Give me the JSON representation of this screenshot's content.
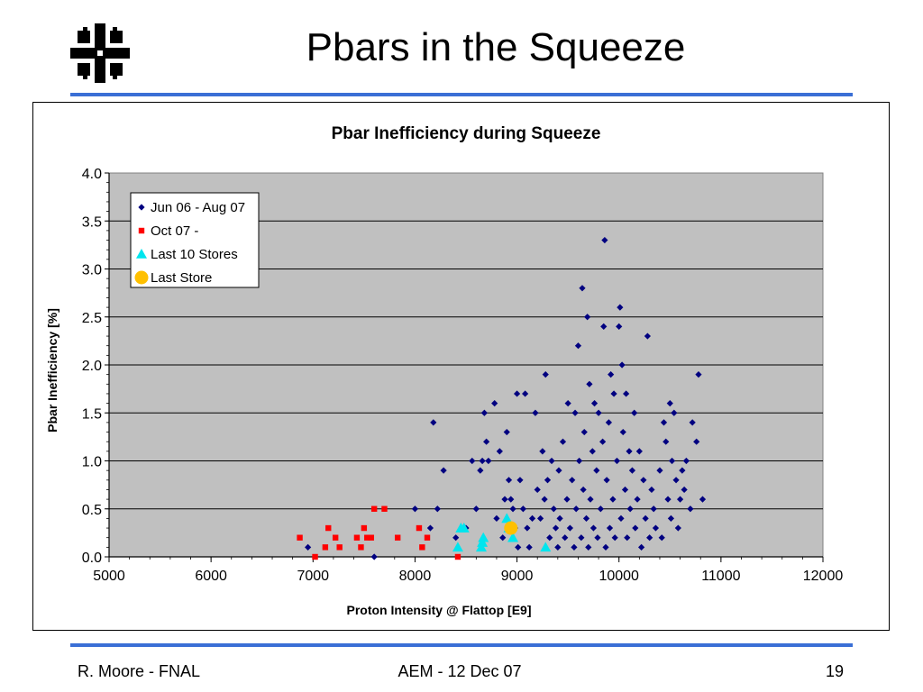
{
  "slide": {
    "title": "Pbars in the Squeeze",
    "footer_left": "R. Moore - FNAL",
    "footer_center": "AEM - 12 Dec 07",
    "footer_right": "19"
  },
  "colors": {
    "accent_rule": "#3a6fd6",
    "plot_background": "#c0c0c0",
    "series_jun": "#000080",
    "series_oct": "#ff0000",
    "series_last10": "#00e5ee",
    "series_last_store": "#ffc000"
  },
  "logo": {
    "icon": "fermilab-logo-icon",
    "color": "#000000"
  },
  "chart_data": {
    "type": "scatter",
    "title": "Pbar Inefficiency during Squeeze",
    "xlabel": "Proton Intensity @ Flattop  [E9]",
    "ylabel": "Pbar Inefficiency  [%]",
    "xlim": [
      5000,
      12000
    ],
    "ylim": [
      0,
      4
    ],
    "xticks": [
      "5000",
      "6000",
      "7000",
      "8000",
      "9000",
      "10000",
      "11000",
      "12000"
    ],
    "yticks": [
      "0.0",
      "0.5",
      "1.0",
      "1.5",
      "2.0",
      "2.5",
      "3.0",
      "3.5",
      "4.0"
    ],
    "grid": "horizontal",
    "legend_position": "top-left",
    "series": [
      {
        "name": "Jun 06 - Aug 07",
        "marker": "diamond",
        "color": "#000080",
        "points": [
          [
            6950,
            0.1
          ],
          [
            7600,
            0.0
          ],
          [
            8000,
            0.5
          ],
          [
            8150,
            0.3
          ],
          [
            8180,
            1.4
          ],
          [
            8220,
            0.5
          ],
          [
            8280,
            0.9
          ],
          [
            8400,
            0.2
          ],
          [
            8500,
            0.3
          ],
          [
            8560,
            1.0
          ],
          [
            8600,
            0.5
          ],
          [
            8640,
            0.9
          ],
          [
            8660,
            1.0
          ],
          [
            8680,
            1.5
          ],
          [
            8700,
            1.2
          ],
          [
            8720,
            1.0
          ],
          [
            8780,
            1.6
          ],
          [
            8800,
            0.4
          ],
          [
            8830,
            1.1
          ],
          [
            8860,
            0.2
          ],
          [
            8880,
            0.6
          ],
          [
            8900,
            1.3
          ],
          [
            8920,
            0.8
          ],
          [
            8940,
            0.6
          ],
          [
            8960,
            0.5
          ],
          [
            8980,
            0.3
          ],
          [
            9000,
            1.7
          ],
          [
            9010,
            0.1
          ],
          [
            9030,
            0.8
          ],
          [
            9060,
            0.5
          ],
          [
            9080,
            1.7
          ],
          [
            9100,
            0.3
          ],
          [
            9120,
            0.1
          ],
          [
            9150,
            0.4
          ],
          [
            9180,
            1.5
          ],
          [
            9200,
            0.7
          ],
          [
            9230,
            0.4
          ],
          [
            9250,
            1.1
          ],
          [
            9270,
            0.6
          ],
          [
            9280,
            1.9
          ],
          [
            9300,
            0.8
          ],
          [
            9320,
            0.2
          ],
          [
            9340,
            1.0
          ],
          [
            9360,
            0.5
          ],
          [
            9380,
            0.3
          ],
          [
            9400,
            0.1
          ],
          [
            9410,
            0.9
          ],
          [
            9420,
            0.4
          ],
          [
            9450,
            1.2
          ],
          [
            9470,
            0.2
          ],
          [
            9490,
            0.6
          ],
          [
            9500,
            1.6
          ],
          [
            9520,
            0.3
          ],
          [
            9540,
            0.8
          ],
          [
            9560,
            0.1
          ],
          [
            9570,
            1.5
          ],
          [
            9580,
            0.5
          ],
          [
            9600,
            2.2
          ],
          [
            9610,
            1.0
          ],
          [
            9630,
            0.2
          ],
          [
            9640,
            2.8
          ],
          [
            9650,
            0.7
          ],
          [
            9660,
            1.3
          ],
          [
            9680,
            0.4
          ],
          [
            9690,
            2.5
          ],
          [
            9700,
            0.1
          ],
          [
            9710,
            1.8
          ],
          [
            9720,
            0.6
          ],
          [
            9740,
            1.1
          ],
          [
            9750,
            0.3
          ],
          [
            9760,
            1.6
          ],
          [
            9780,
            0.9
          ],
          [
            9790,
            0.2
          ],
          [
            9800,
            1.5
          ],
          [
            9820,
            0.5
          ],
          [
            9840,
            1.2
          ],
          [
            9850,
            2.4
          ],
          [
            9860,
            3.3
          ],
          [
            9870,
            0.1
          ],
          [
            9880,
            0.8
          ],
          [
            9900,
            1.4
          ],
          [
            9910,
            0.3
          ],
          [
            9920,
            1.9
          ],
          [
            9940,
            0.6
          ],
          [
            9950,
            1.7
          ],
          [
            9960,
            0.2
          ],
          [
            9980,
            1.0
          ],
          [
            10000,
            2.4
          ],
          [
            10010,
            2.6
          ],
          [
            10020,
            0.4
          ],
          [
            10030,
            2.0
          ],
          [
            10040,
            1.3
          ],
          [
            10060,
            0.7
          ],
          [
            10070,
            1.7
          ],
          [
            10080,
            0.2
          ],
          [
            10100,
            1.1
          ],
          [
            10110,
            0.5
          ],
          [
            10130,
            0.9
          ],
          [
            10150,
            1.5
          ],
          [
            10160,
            0.3
          ],
          [
            10180,
            0.6
          ],
          [
            10200,
            1.1
          ],
          [
            10220,
            0.1
          ],
          [
            10240,
            0.8
          ],
          [
            10260,
            0.4
          ],
          [
            10280,
            2.3
          ],
          [
            10300,
            0.2
          ],
          [
            10320,
            0.7
          ],
          [
            10340,
            0.5
          ],
          [
            10360,
            0.3
          ],
          [
            10400,
            0.9
          ],
          [
            10420,
            0.2
          ],
          [
            10440,
            1.4
          ],
          [
            10460,
            1.2
          ],
          [
            10480,
            0.6
          ],
          [
            10500,
            1.6
          ],
          [
            10510,
            0.4
          ],
          [
            10520,
            1.0
          ],
          [
            10540,
            1.5
          ],
          [
            10560,
            0.8
          ],
          [
            10580,
            0.3
          ],
          [
            10600,
            0.6
          ],
          [
            10620,
            0.9
          ],
          [
            10640,
            0.7
          ],
          [
            10660,
            1.0
          ],
          [
            10700,
            0.5
          ],
          [
            10720,
            1.4
          ],
          [
            10760,
            1.2
          ],
          [
            10780,
            1.9
          ],
          [
            10820,
            0.6
          ]
        ]
      },
      {
        "name": "Oct 07 -",
        "marker": "square",
        "color": "#ff0000",
        "points": [
          [
            6870,
            0.2
          ],
          [
            7020,
            0.0
          ],
          [
            7120,
            0.1
          ],
          [
            7150,
            0.3
          ],
          [
            7220,
            0.2
          ],
          [
            7260,
            0.1
          ],
          [
            7430,
            0.2
          ],
          [
            7470,
            0.1
          ],
          [
            7500,
            0.3
          ],
          [
            7530,
            0.2
          ],
          [
            7570,
            0.2
          ],
          [
            7600,
            0.5
          ],
          [
            7700,
            0.5
          ],
          [
            7830,
            0.2
          ],
          [
            8040,
            0.3
          ],
          [
            8070,
            0.1
          ],
          [
            8120,
            0.2
          ],
          [
            8420,
            0.0
          ]
        ]
      },
      {
        "name": "Last 10 Stores",
        "marker": "triangle",
        "color": "#00e5ee",
        "points": [
          [
            8420,
            0.1
          ],
          [
            8480,
            0.3
          ],
          [
            8650,
            0.1
          ],
          [
            8670,
            0.2
          ],
          [
            8900,
            0.4
          ],
          [
            8960,
            0.2
          ],
          [
            9280,
            0.1
          ],
          [
            8450,
            0.3
          ],
          [
            8660,
            0.15
          ],
          [
            8920,
            0.3
          ]
        ]
      },
      {
        "name": "Last Store",
        "marker": "circle",
        "color": "#ffc000",
        "points": [
          [
            8940,
            0.3
          ]
        ]
      }
    ]
  }
}
